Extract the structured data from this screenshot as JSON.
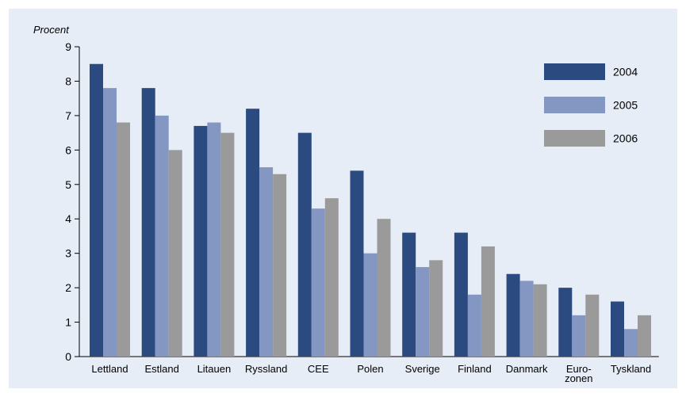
{
  "chart_data": {
    "type": "bar",
    "ylabel": "Procent",
    "xlabel": "",
    "ylim": [
      0,
      9
    ],
    "yticks": [
      0,
      1,
      2,
      3,
      4,
      5,
      6,
      7,
      8,
      9
    ],
    "grid": false,
    "legend_position": "top-right",
    "categories": [
      [
        "Lettland"
      ],
      [
        "Estland"
      ],
      [
        "Litauen"
      ],
      [
        "Ryssland"
      ],
      [
        "CEE"
      ],
      [
        "Polen"
      ],
      [
        "Sverige"
      ],
      [
        "Finland"
      ],
      [
        "Danmark"
      ],
      [
        "Euro-",
        "zonen"
      ],
      [
        "Tyskland"
      ]
    ],
    "series": [
      {
        "name": "2004",
        "color": "#2a4a80",
        "values": [
          8.5,
          7.8,
          6.7,
          7.2,
          6.5,
          5.4,
          3.6,
          3.6,
          2.4,
          2.0,
          1.6
        ]
      },
      {
        "name": "2005",
        "color": "#8497c2",
        "values": [
          7.8,
          7.0,
          6.8,
          5.5,
          4.3,
          3.0,
          2.6,
          1.8,
          2.2,
          1.2,
          0.8
        ]
      },
      {
        "name": "2006",
        "color": "#9a9a9a",
        "values": [
          6.8,
          6.0,
          6.5,
          5.3,
          4.6,
          4.0,
          2.8,
          3.2,
          2.1,
          1.8,
          1.2
        ]
      }
    ]
  }
}
